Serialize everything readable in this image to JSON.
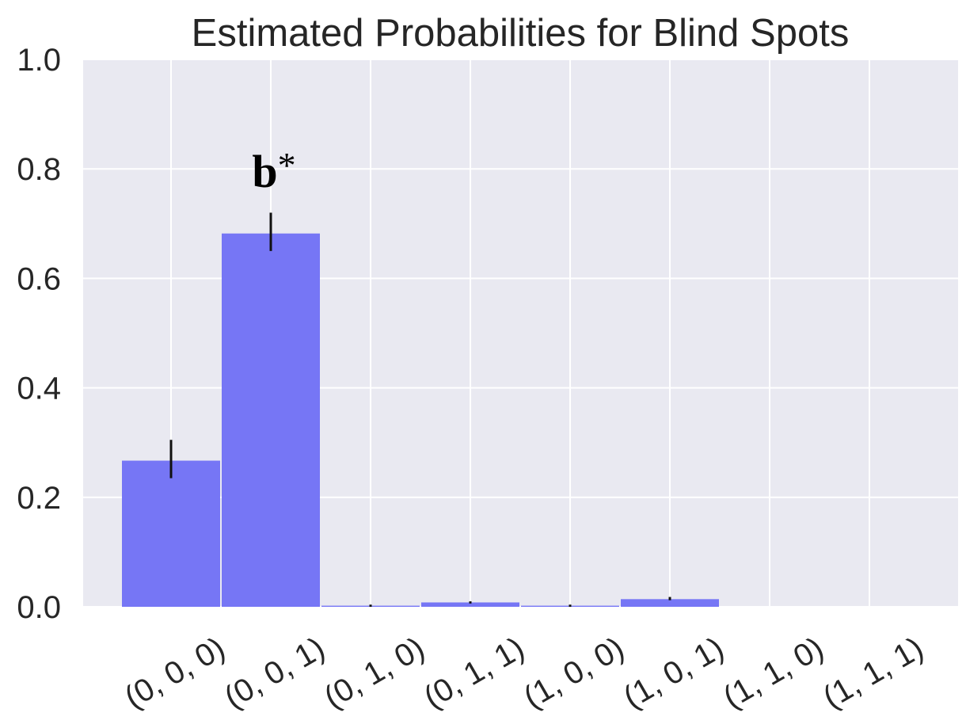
{
  "chart_data": {
    "type": "bar",
    "title": "Estimated Probabilities for Blind Spots",
    "xlabel": "",
    "ylabel": "",
    "categories": [
      "(0, 0, 0)",
      "(0, 0, 1)",
      "(0, 1, 0)",
      "(0, 1, 1)",
      "(1, 0, 0)",
      "(1, 0, 1)",
      "(1, 1, 0)",
      "(1, 1, 1)"
    ],
    "values": [
      0.267,
      0.682,
      0.002,
      0.008,
      0.002,
      0.014,
      0.0,
      0.0
    ],
    "error_low": [
      0.235,
      0.65,
      0.0,
      0.006,
      0.0,
      0.012,
      0.0,
      0.0
    ],
    "error_high": [
      0.305,
      0.72,
      0.004,
      0.01,
      0.004,
      0.018,
      0.0,
      0.0
    ],
    "ylim": [
      0,
      1.0
    ],
    "yticks": [
      "0.0",
      "0.2",
      "0.4",
      "0.6",
      "0.8",
      "1.0"
    ],
    "grid": true,
    "bar_color": "#7676f5",
    "background_color": "#e9e9f1",
    "annotations": [
      {
        "text": "b",
        "suffix": "*",
        "category_index": 1
      }
    ]
  }
}
